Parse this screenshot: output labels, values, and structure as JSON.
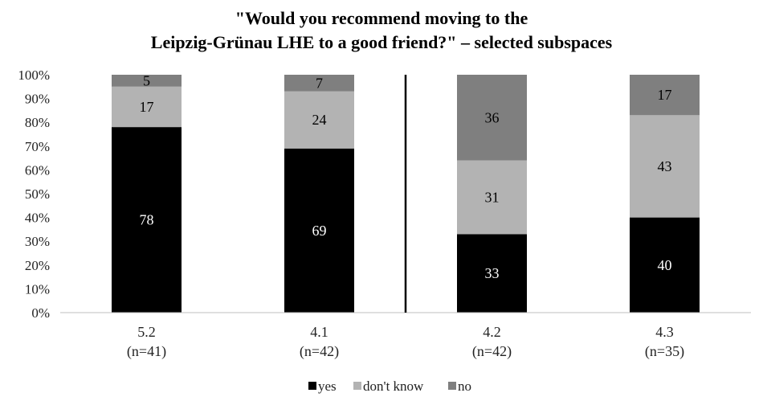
{
  "chart_data": {
    "type": "bar",
    "stacked": true,
    "percent_stacked": true,
    "title_lines": [
      "\"Would you recommend moving to the",
      "Leipzig-Grünau LHE to a good friend?\" – selected subspaces"
    ],
    "categories": [
      "5.2",
      "4.1",
      "4.2",
      "4.3"
    ],
    "category_n": [
      "(n=41)",
      "(n=42)",
      "(n=42)",
      "(n=35)"
    ],
    "series": [
      {
        "name": "yes",
        "values": [
          78,
          69,
          33,
          40
        ],
        "color": "#000000",
        "label_color": "#ffffff"
      },
      {
        "name": "don't know",
        "values": [
          17,
          24,
          31,
          43
        ],
        "color": "#b3b3b3",
        "label_color": "#000000"
      },
      {
        "name": "no",
        "values": [
          5,
          7,
          36,
          17
        ],
        "color": "#7f7f7f",
        "label_color": "#000000"
      }
    ],
    "ylim": [
      0,
      100
    ],
    "y_ticks": [
      "0%",
      "10%",
      "20%",
      "30%",
      "40%",
      "50%",
      "60%",
      "70%",
      "80%",
      "90%",
      "100%"
    ],
    "divider_after_category": 1,
    "legend_position": "bottom",
    "grid": false
  }
}
